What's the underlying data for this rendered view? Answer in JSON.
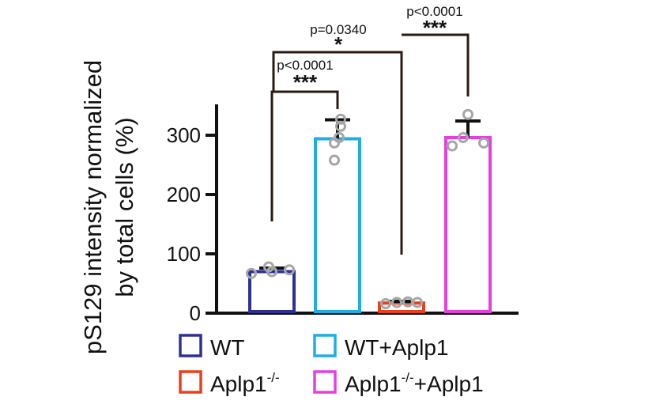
{
  "chart_data": {
    "type": "bar",
    "ylabel_line1": "pS129 intensity normalized",
    "ylabel_line2": "by total cells (%)",
    "ylim": [
      0,
      350
    ],
    "yticks": [
      0,
      100,
      200,
      300
    ],
    "grid": false,
    "legend_position": "bottom",
    "series": [
      {
        "name": "WT",
        "name_main": "WT",
        "name_sup": "",
        "name_tail": "",
        "color": "#2e3192",
        "value": 70,
        "error": 6,
        "points": [
          67,
          70,
          73,
          78
        ]
      },
      {
        "name": "WT+Aplp1",
        "name_main": "WT+Aplp1",
        "name_sup": "",
        "name_tail": "",
        "color": "#1eaee3",
        "value": 294,
        "error": 32,
        "points": [
          258,
          287,
          296,
          315,
          327
        ]
      },
      {
        "name": "Aplp1-/-",
        "name_main": "Aplp1",
        "name_sup": "-/-",
        "name_tail": "",
        "color": "#e8401c",
        "value": 17,
        "error": 3,
        "points": [
          16,
          18,
          19,
          18
        ]
      },
      {
        "name": "Aplp1-/-+Aplp1",
        "name_main": "Aplp1",
        "name_sup": "-/-",
        "name_tail": "+Aplp1",
        "color": "#e53fe0",
        "value": 296,
        "error": 28,
        "points": [
          282,
          287,
          296,
          335
        ]
      }
    ],
    "comparisons": [
      {
        "from": 0,
        "to": 1,
        "p": "p<0.0001",
        "stars": "***"
      },
      {
        "from": 2,
        "to": 3,
        "p": "p<0.0001",
        "stars": "***"
      },
      {
        "from": "0-1",
        "to": "2-3",
        "p": "p=0.0340",
        "stars": "*"
      }
    ]
  }
}
